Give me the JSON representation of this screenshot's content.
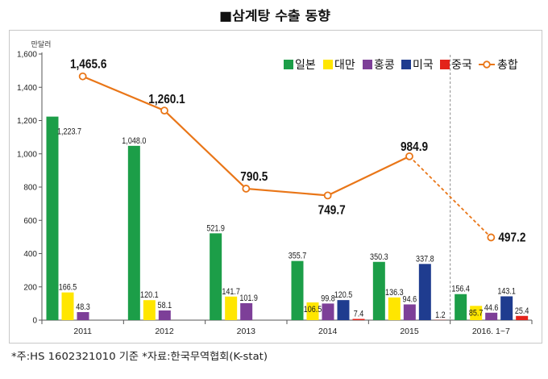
{
  "title": "■삼계탕 수출 동향",
  "footnote": "*주:HS 1602321010 기준 *자료:한국무역협회(K-stat)",
  "chart_data": {
    "type": "bar",
    "unit_label": "만달러",
    "categories": [
      "2011",
      "2012",
      "2013",
      "2014",
      "2015",
      "2016. 1~7"
    ],
    "ylim": [
      0,
      1600
    ],
    "yticks": [
      0,
      200,
      400,
      600,
      800,
      1000,
      1200,
      1400,
      1600
    ],
    "ytick_labels": [
      "0",
      "200",
      "400",
      "600",
      "800",
      "1,000",
      "1,200",
      "1,400",
      "1,600"
    ],
    "grid": false,
    "legend_position": "top-right",
    "last_category_partial": true,
    "series": [
      {
        "name": "일본",
        "type": "bar",
        "color": "#1c9e48",
        "values": [
          1223.7,
          1048.0,
          521.9,
          355.7,
          350.3,
          156.4
        ],
        "labels": [
          "1,223.7",
          "1,048.0",
          "521.9",
          "355.7",
          "350.3",
          "156.4"
        ]
      },
      {
        "name": "대만",
        "type": "bar",
        "color": "#ffe600",
        "values": [
          166.5,
          120.1,
          141.7,
          106.5,
          136.3,
          85.7
        ],
        "labels": [
          "166.5",
          "120.1",
          "141.7",
          "106.5",
          "136.3",
          "85.7"
        ]
      },
      {
        "name": "홍콩",
        "type": "bar",
        "color": "#7d3f98",
        "values": [
          48.3,
          58.1,
          101.9,
          99.8,
          94.6,
          44.6
        ],
        "labels": [
          "48.3",
          "58.1",
          "101.9",
          "99.8",
          "94.6",
          "44.6"
        ]
      },
      {
        "name": "미국",
        "type": "bar",
        "color": "#1f3c8f",
        "values": [
          null,
          null,
          null,
          120.5,
          337.8,
          143.1
        ],
        "labels": [
          null,
          null,
          null,
          "120.5",
          "337.8",
          "143.1"
        ]
      },
      {
        "name": "중국",
        "type": "bar",
        "color": "#e3231b",
        "values": [
          null,
          null,
          null,
          7.4,
          1.2,
          25.4
        ],
        "labels": [
          null,
          null,
          null,
          "7.4",
          "1.2",
          "25.4"
        ]
      },
      {
        "name": "총합",
        "type": "line",
        "color": "#e97618",
        "values": [
          1465.6,
          1260.1,
          790.5,
          749.7,
          984.9,
          497.2
        ],
        "labels": [
          "1,465.6",
          "1,260.1",
          "790.5",
          "749.7",
          "984.9",
          "497.2"
        ]
      }
    ]
  }
}
